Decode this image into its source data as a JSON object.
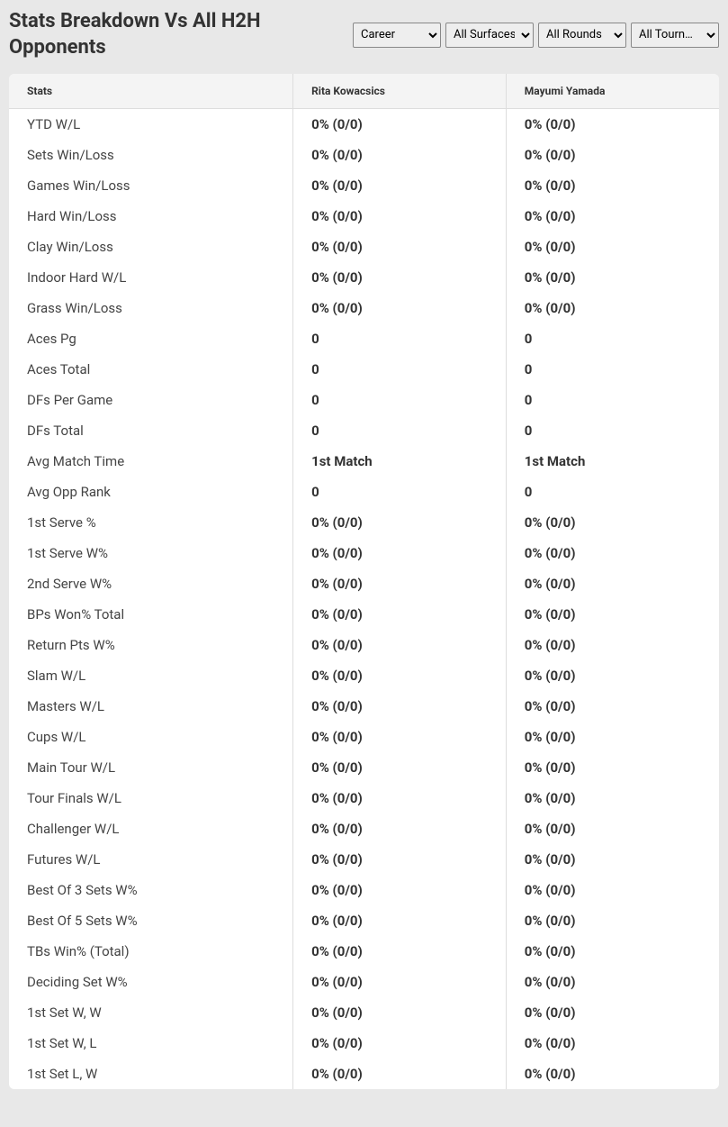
{
  "title": "Stats Breakdown Vs All H2H Opponents",
  "filters": {
    "career": {
      "selected": "Career",
      "options": [
        "Career"
      ]
    },
    "surfaces": {
      "selected": "All Surfaces",
      "options": [
        "All Surfaces"
      ]
    },
    "rounds": {
      "selected": "All Rounds",
      "options": [
        "All Rounds"
      ]
    },
    "tournaments": {
      "selected": "All Tourn…",
      "options": [
        "All Tourn…"
      ]
    }
  },
  "columns": {
    "stats": "Stats",
    "player1": "Rita Kowacsics",
    "player2": "Mayumi Yamada"
  },
  "rows": [
    {
      "stat": "YTD W/L",
      "p1": "0% (0/0)",
      "p2": "0% (0/0)"
    },
    {
      "stat": "Sets Win/Loss",
      "p1": "0% (0/0)",
      "p2": "0% (0/0)"
    },
    {
      "stat": "Games Win/Loss",
      "p1": "0% (0/0)",
      "p2": "0% (0/0)"
    },
    {
      "stat": "Hard Win/Loss",
      "p1": "0% (0/0)",
      "p2": "0% (0/0)"
    },
    {
      "stat": "Clay Win/Loss",
      "p1": "0% (0/0)",
      "p2": "0% (0/0)"
    },
    {
      "stat": "Indoor Hard W/L",
      "p1": "0% (0/0)",
      "p2": "0% (0/0)"
    },
    {
      "stat": "Grass Win/Loss",
      "p1": "0% (0/0)",
      "p2": "0% (0/0)"
    },
    {
      "stat": "Aces Pg",
      "p1": "0",
      "p2": "0"
    },
    {
      "stat": "Aces Total",
      "p1": "0",
      "p2": "0"
    },
    {
      "stat": "DFs Per Game",
      "p1": "0",
      "p2": "0"
    },
    {
      "stat": "DFs Total",
      "p1": "0",
      "p2": "0"
    },
    {
      "stat": "Avg Match Time",
      "p1": "1st Match",
      "p2": "1st Match"
    },
    {
      "stat": "Avg Opp Rank",
      "p1": "0",
      "p2": "0"
    },
    {
      "stat": "1st Serve %",
      "p1": "0% (0/0)",
      "p2": "0% (0/0)"
    },
    {
      "stat": "1st Serve W%",
      "p1": "0% (0/0)",
      "p2": "0% (0/0)"
    },
    {
      "stat": "2nd Serve W%",
      "p1": "0% (0/0)",
      "p2": "0% (0/0)"
    },
    {
      "stat": "BPs Won% Total",
      "p1": "0% (0/0)",
      "p2": "0% (0/0)"
    },
    {
      "stat": "Return Pts W%",
      "p1": "0% (0/0)",
      "p2": "0% (0/0)"
    },
    {
      "stat": "Slam W/L",
      "p1": "0% (0/0)",
      "p2": "0% (0/0)"
    },
    {
      "stat": "Masters W/L",
      "p1": "0% (0/0)",
      "p2": "0% (0/0)"
    },
    {
      "stat": "Cups W/L",
      "p1": "0% (0/0)",
      "p2": "0% (0/0)"
    },
    {
      "stat": "Main Tour W/L",
      "p1": "0% (0/0)",
      "p2": "0% (0/0)"
    },
    {
      "stat": "Tour Finals W/L",
      "p1": "0% (0/0)",
      "p2": "0% (0/0)"
    },
    {
      "stat": "Challenger W/L",
      "p1": "0% (0/0)",
      "p2": "0% (0/0)"
    },
    {
      "stat": "Futures W/L",
      "p1": "0% (0/0)",
      "p2": "0% (0/0)"
    },
    {
      "stat": "Best Of 3 Sets W%",
      "p1": "0% (0/0)",
      "p2": "0% (0/0)"
    },
    {
      "stat": "Best Of 5 Sets W%",
      "p1": "0% (0/0)",
      "p2": "0% (0/0)"
    },
    {
      "stat": "TBs Win% (Total)",
      "p1": "0% (0/0)",
      "p2": "0% (0/0)"
    },
    {
      "stat": "Deciding Set W%",
      "p1": "0% (0/0)",
      "p2": "0% (0/0)"
    },
    {
      "stat": "1st Set W, W",
      "p1": "0% (0/0)",
      "p2": "0% (0/0)"
    },
    {
      "stat": "1st Set W, L",
      "p1": "0% (0/0)",
      "p2": "0% (0/0)"
    },
    {
      "stat": "1st Set L, W",
      "p1": "0% (0/0)",
      "p2": "0% (0/0)"
    }
  ],
  "styling": {
    "page_bg": "#e8e8e8",
    "card_bg": "#ffffff",
    "header_bg": "#f4f4f4",
    "border_color": "#dddddd",
    "title_color": "#333333",
    "title_fontsize": 22,
    "header_fontsize": 12,
    "cell_fontsize": 15,
    "value_fontweight": 700,
    "label_fontweight": 400,
    "select_bg": "#eeeeee",
    "select_border": "#888888"
  }
}
